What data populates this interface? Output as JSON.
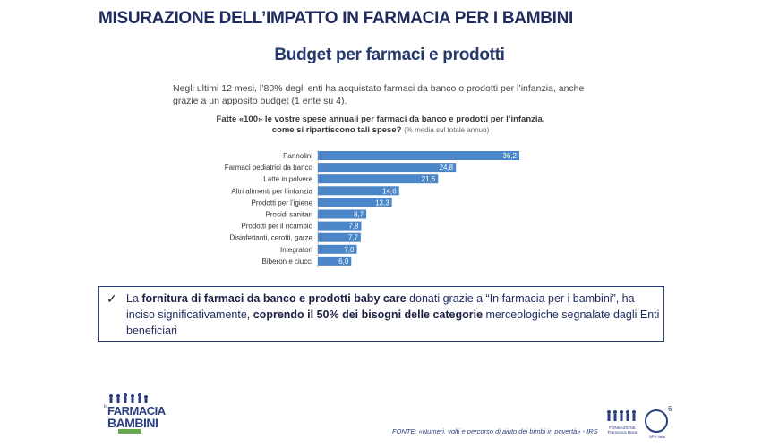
{
  "header": {
    "title": "MISURAZIONE DELL’IMPATTO IN FARMACIA PER I BAMBINI",
    "subtitle": "Budget per farmaci e prodotti"
  },
  "intro": {
    "text": "Negli ultimi 12 mesi, l’80% degli enti ha acquistato farmaci da banco o prodotti per l’infanzia, anche grazie a un apposito budget (1 ente su 4)."
  },
  "question": {
    "text": "Fatte «100» le vostre spese annuali per farmaci da banco e prodotti per l’infanzia, come si ripartiscono tali spese?",
    "note": "(% media sul totale annuo)"
  },
  "chart_data": {
    "type": "bar",
    "orientation": "horizontal",
    "categories": [
      "Pannolini",
      "Farmaci pediatrici da banco",
      "Latte in polvere",
      "Altri alimenti per l’infanzia",
      "Prodotti per l’igiene",
      "Presidi sanitari",
      "Prodotti per il ricambio",
      "Disinfettanti, cerotti, garze",
      "Integratori",
      "Biberon e ciucci"
    ],
    "values": [
      36.2,
      24.8,
      21.6,
      14.6,
      13.3,
      8.7,
      7.8,
      7.7,
      7.0,
      6.0
    ],
    "value_labels": [
      "36,2",
      "24,8",
      "21,6",
      "14,6",
      "13,3",
      "8,7",
      "7,8",
      "7,7",
      "7,0",
      "6,0"
    ],
    "xlim": [
      0,
      36.2
    ],
    "bar_color": "#4a86c8",
    "title": "",
    "xlabel": "",
    "ylabel": ""
  },
  "callout": {
    "check": "✓",
    "t1": "La ",
    "b1": "fornitura di farmaci da banco e prodotti baby care",
    "t2": " donati grazie a “In farmacia per i bambini”, ha inciso significativamente, ",
    "b2": "coprendo il 50% dei bisogni delle categorie",
    "t3": " merceologiche segnalate dagli  Enti beneficiari"
  },
  "footer": {
    "source": "FONTE: «Numeri, volti e percorso di aiuto dei bimbi in povertà» - IRS",
    "logo_left_top": "In",
    "logo_left_l1": "FARMACIA",
    "logo_left_l2": "BAMBINI",
    "logo_right1_text": "FONDAZIONE Francesca Rava",
    "logo_right2_text": "NPH Italia",
    "logo_right2_sup": "6"
  },
  "colors": {
    "title": "#1f2a5e",
    "accent": "#2a3f80",
    "bar": "#4a86c8"
  }
}
